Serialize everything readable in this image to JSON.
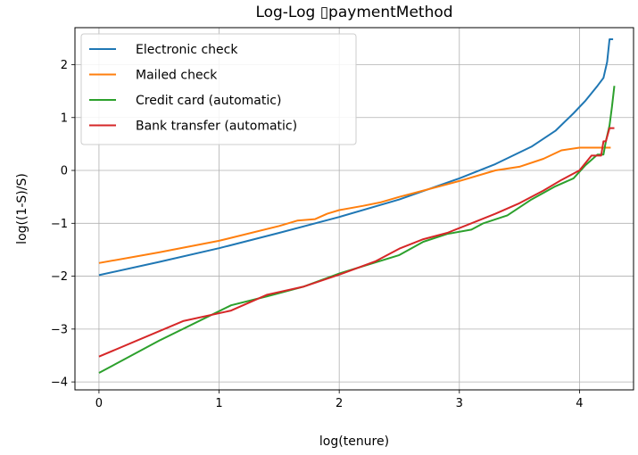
{
  "chart_data": {
    "type": "line",
    "title": "Log-Log ▯paymentMethod",
    "xlabel": "log(tenure)",
    "ylabel": "log((1-S)/S)",
    "xlim": [
      -0.2,
      4.45
    ],
    "ylim": [
      -4.15,
      2.7
    ],
    "xticks": [
      0,
      1,
      2,
      3,
      4
    ],
    "yticks": [
      -4,
      -3,
      -2,
      -1,
      0,
      1,
      2
    ],
    "grid": true,
    "legend_position": "top-left",
    "series": [
      {
        "name": "Electronic check",
        "color": "#1f77b4",
        "x": [
          0,
          0.5,
          1.0,
          1.5,
          2.0,
          2.5,
          3.0,
          3.3,
          3.6,
          3.8,
          3.95,
          4.05,
          4.15,
          4.2,
          4.23,
          4.25,
          4.28
        ],
        "y": [
          -1.98,
          -1.73,
          -1.47,
          -1.18,
          -0.88,
          -0.55,
          -0.15,
          0.12,
          0.45,
          0.75,
          1.08,
          1.32,
          1.6,
          1.75,
          2.05,
          2.48,
          2.48
        ]
      },
      {
        "name": "Mailed check",
        "color": "#ff7f0e",
        "x": [
          0,
          0.5,
          1.0,
          1.5,
          1.65,
          1.8,
          1.9,
          2.0,
          2.2,
          2.35,
          2.5,
          2.7,
          3.0,
          3.3,
          3.5,
          3.7,
          3.85,
          4.0,
          4.1,
          4.22,
          4.26
        ],
        "y": [
          -1.75,
          -1.55,
          -1.33,
          -1.05,
          -0.95,
          -0.92,
          -0.82,
          -0.75,
          -0.67,
          -0.6,
          -0.5,
          -0.38,
          -0.2,
          0.0,
          0.07,
          0.22,
          0.38,
          0.43,
          0.43,
          0.43,
          0.43
        ]
      },
      {
        "name": "Credit card (automatic)",
        "color": "#2ca02c",
        "x": [
          0,
          0.5,
          1.1,
          1.4,
          1.7,
          2.0,
          2.5,
          2.7,
          2.9,
          3.1,
          3.2,
          3.4,
          3.6,
          3.8,
          3.95,
          4.05,
          4.15,
          4.2,
          4.22,
          4.25,
          4.27,
          4.29
        ],
        "y": [
          -3.83,
          -3.22,
          -2.55,
          -2.38,
          -2.2,
          -1.95,
          -1.6,
          -1.35,
          -1.2,
          -1.12,
          -1.0,
          -0.85,
          -0.55,
          -0.3,
          -0.15,
          0.1,
          0.3,
          0.3,
          0.55,
          0.85,
          1.2,
          1.6
        ]
      },
      {
        "name": "Bank transfer (automatic)",
        "color": "#d62728",
        "x": [
          0,
          0.7,
          1.1,
          1.4,
          1.7,
          2.0,
          2.3,
          2.5,
          2.7,
          2.9,
          3.1,
          3.3,
          3.5,
          3.7,
          3.85,
          4.0,
          4.1,
          4.18,
          4.2,
          4.22,
          4.25,
          4.29
        ],
        "y": [
          -3.52,
          -2.85,
          -2.65,
          -2.35,
          -2.2,
          -1.97,
          -1.72,
          -1.48,
          -1.3,
          -1.18,
          -1.0,
          -0.82,
          -0.62,
          -0.38,
          -0.18,
          0.0,
          0.28,
          0.28,
          0.55,
          0.55,
          0.8,
          0.8
        ]
      }
    ]
  }
}
